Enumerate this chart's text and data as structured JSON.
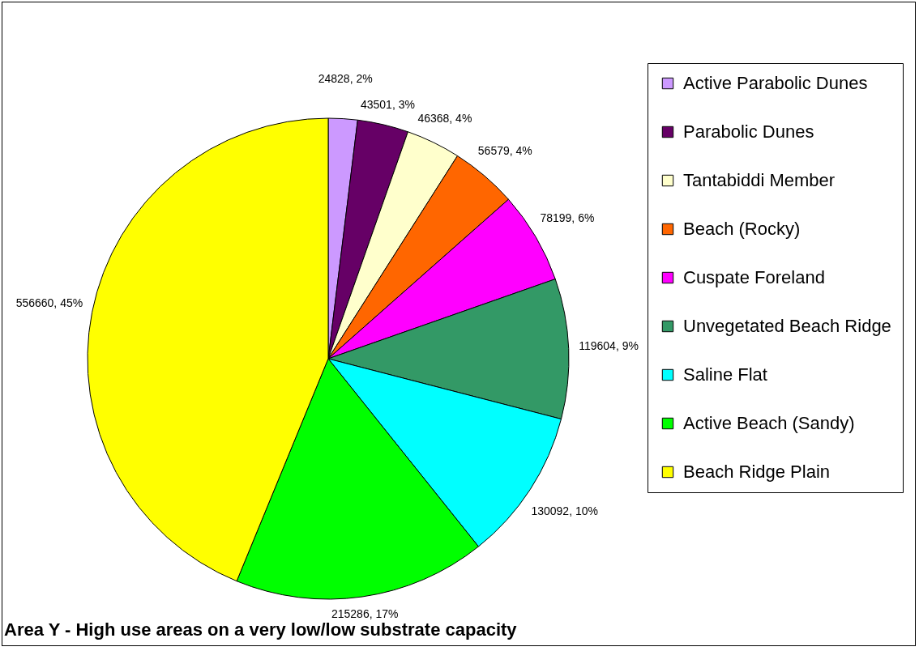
{
  "chart_data": {
    "type": "pie",
    "title": "Area Y - High use areas on a very low/low substrate capacity",
    "categories": [
      "Active Parabolic Dunes",
      "Parabolic Dunes",
      "Tantabiddi Member",
      "Beach (Rocky)",
      "Cuspate Foreland",
      "Unvegetated Beach Ridge",
      "Saline Flat",
      "Active Beach (Sandy)",
      "Beach Ridge Plain"
    ],
    "values": [
      24828,
      43501,
      46368,
      56579,
      78199,
      119604,
      130092,
      215286,
      556660
    ],
    "colors": [
      "#cc99ff",
      "#660066",
      "#ffffcc",
      "#ff6600",
      "#ff00ff",
      "#339966",
      "#00ffff",
      "#00ff00",
      "#ffff00"
    ],
    "value_labels": [
      "24828, 2%",
      "43501, 3%",
      "46368, 4%",
      "56579, 4%",
      "78199, 6%",
      "119604, 9%",
      "130092, 10%",
      "215286, 17%",
      "556660, 45%"
    ],
    "legend": "right"
  }
}
